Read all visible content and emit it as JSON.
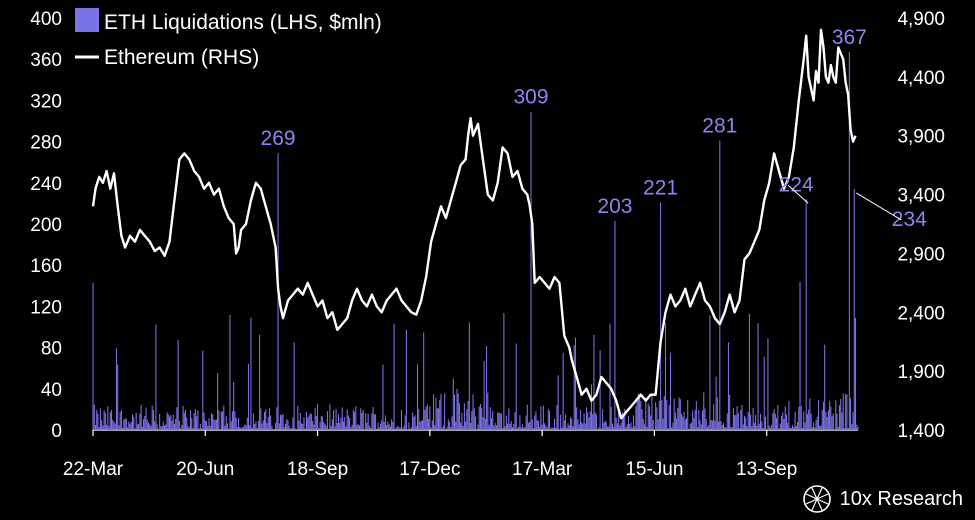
{
  "chart_data": {
    "type": "bar+line",
    "series": [
      {
        "name": "ETH Liquidations (LHS, $mln)",
        "kind": "bar",
        "axis": "left",
        "color": "#7b74e6"
      },
      {
        "name": "Ethereum (RHS)",
        "kind": "line",
        "axis": "right",
        "color": "#ffffff"
      }
    ],
    "x_ticks": [
      "22-Mar",
      "20-Jun",
      "18-Sep",
      "17-Dec",
      "17-Mar",
      "15-Jun",
      "13-Sep"
    ],
    "x_range_days": [
      0,
      620
    ],
    "y_left": {
      "ticks": [
        0,
        40,
        80,
        120,
        160,
        200,
        240,
        280,
        320,
        360,
        400
      ],
      "range": [
        0,
        400
      ]
    },
    "y_right": {
      "ticks": [
        1400,
        1900,
        2400,
        2900,
        3400,
        3900,
        4400,
        4900
      ],
      "labels": [
        "1,400",
        "1,900",
        "2,400",
        "2,900",
        "3,400",
        "3,900",
        "4,400",
        "4,900"
      ],
      "range": [
        1400,
        4900
      ]
    },
    "annotations": [
      {
        "label": "269",
        "day": 150,
        "value": 269
      },
      {
        "label": "309",
        "day": 355,
        "value": 309
      },
      {
        "label": "203",
        "day": 423,
        "value": 203
      },
      {
        "label": "221",
        "day": 460,
        "value": 221
      },
      {
        "label": "281",
        "day": 508,
        "value": 281
      },
      {
        "label": "224",
        "day": 578,
        "value": 224
      },
      {
        "label": "367",
        "day": 613,
        "value": 367
      },
      {
        "label": "234",
        "day": 617,
        "value": 234
      }
    ],
    "eth_price": [
      [
        0,
        3300
      ],
      [
        2,
        3450
      ],
      [
        5,
        3550
      ],
      [
        8,
        3500
      ],
      [
        11,
        3600
      ],
      [
        14,
        3450
      ],
      [
        17,
        3580
      ],
      [
        20,
        3300
      ],
      [
        23,
        3050
      ],
      [
        26,
        2950
      ],
      [
        30,
        3050
      ],
      [
        34,
        3000
      ],
      [
        38,
        3100
      ],
      [
        42,
        3050
      ],
      [
        46,
        3000
      ],
      [
        50,
        2920
      ],
      [
        54,
        2950
      ],
      [
        58,
        2880
      ],
      [
        62,
        3000
      ],
      [
        66,
        3350
      ],
      [
        70,
        3700
      ],
      [
        74,
        3750
      ],
      [
        78,
        3700
      ],
      [
        82,
        3600
      ],
      [
        86,
        3550
      ],
      [
        90,
        3450
      ],
      [
        94,
        3500
      ],
      [
        98,
        3400
      ],
      [
        102,
        3450
      ],
      [
        106,
        3300
      ],
      [
        110,
        3200
      ],
      [
        114,
        3150
      ],
      [
        116,
        2900
      ],
      [
        118,
        2950
      ],
      [
        120,
        3100
      ],
      [
        124,
        3150
      ],
      [
        128,
        3350
      ],
      [
        132,
        3500
      ],
      [
        136,
        3450
      ],
      [
        140,
        3300
      ],
      [
        144,
        3150
      ],
      [
        148,
        2950
      ],
      [
        150,
        2600
      ],
      [
        152,
        2450
      ],
      [
        154,
        2350
      ],
      [
        158,
        2500
      ],
      [
        162,
        2550
      ],
      [
        166,
        2600
      ],
      [
        170,
        2550
      ],
      [
        174,
        2650
      ],
      [
        178,
        2550
      ],
      [
        182,
        2450
      ],
      [
        186,
        2500
      ],
      [
        190,
        2350
      ],
      [
        194,
        2400
      ],
      [
        198,
        2250
      ],
      [
        202,
        2300
      ],
      [
        206,
        2350
      ],
      [
        210,
        2500
      ],
      [
        214,
        2600
      ],
      [
        218,
        2500
      ],
      [
        222,
        2450
      ],
      [
        226,
        2550
      ],
      [
        230,
        2450
      ],
      [
        234,
        2400
      ],
      [
        238,
        2500
      ],
      [
        242,
        2550
      ],
      [
        246,
        2600
      ],
      [
        250,
        2500
      ],
      [
        254,
        2450
      ],
      [
        258,
        2400
      ],
      [
        262,
        2380
      ],
      [
        266,
        2500
      ],
      [
        270,
        2700
      ],
      [
        274,
        3000
      ],
      [
        278,
        3150
      ],
      [
        282,
        3300
      ],
      [
        286,
        3200
      ],
      [
        290,
        3350
      ],
      [
        294,
        3500
      ],
      [
        298,
        3650
      ],
      [
        302,
        3700
      ],
      [
        304,
        3900
      ],
      [
        306,
        4050
      ],
      [
        308,
        3900
      ],
      [
        312,
        4000
      ],
      [
        316,
        3700
      ],
      [
        320,
        3400
      ],
      [
        324,
        3350
      ],
      [
        328,
        3500
      ],
      [
        332,
        3800
      ],
      [
        336,
        3750
      ],
      [
        340,
        3550
      ],
      [
        344,
        3600
      ],
      [
        348,
        3450
      ],
      [
        352,
        3400
      ],
      [
        354,
        3300
      ],
      [
        356,
        3150
      ],
      [
        358,
        2650
      ],
      [
        362,
        2700
      ],
      [
        366,
        2650
      ],
      [
        370,
        2600
      ],
      [
        374,
        2700
      ],
      [
        378,
        2650
      ],
      [
        382,
        2200
      ],
      [
        386,
        2100
      ],
      [
        388,
        2000
      ],
      [
        392,
        1850
      ],
      [
        396,
        1700
      ],
      [
        400,
        1750
      ],
      [
        404,
        1650
      ],
      [
        408,
        1700
      ],
      [
        412,
        1850
      ],
      [
        416,
        1800
      ],
      [
        420,
        1750
      ],
      [
        424,
        1650
      ],
      [
        428,
        1500
      ],
      [
        432,
        1550
      ],
      [
        436,
        1600
      ],
      [
        440,
        1650
      ],
      [
        444,
        1700
      ],
      [
        448,
        1650
      ],
      [
        452,
        1700
      ],
      [
        456,
        1700
      ],
      [
        460,
        2150
      ],
      [
        464,
        2400
      ],
      [
        468,
        2550
      ],
      [
        472,
        2450
      ],
      [
        476,
        2500
      ],
      [
        480,
        2600
      ],
      [
        484,
        2450
      ],
      [
        488,
        2550
      ],
      [
        492,
        2650
      ],
      [
        496,
        2500
      ],
      [
        500,
        2450
      ],
      [
        504,
        2350
      ],
      [
        508,
        2300
      ],
      [
        512,
        2400
      ],
      [
        516,
        2550
      ],
      [
        520,
        2400
      ],
      [
        524,
        2500
      ],
      [
        528,
        2850
      ],
      [
        532,
        2900
      ],
      [
        536,
        3000
      ],
      [
        540,
        3100
      ],
      [
        544,
        3350
      ],
      [
        548,
        3500
      ],
      [
        552,
        3750
      ],
      [
        556,
        3600
      ],
      [
        560,
        3450
      ],
      [
        564,
        3550
      ],
      [
        568,
        3800
      ],
      [
        572,
        4200
      ],
      [
        576,
        4550
      ],
      [
        578,
        4750
      ],
      [
        580,
        4400
      ],
      [
        582,
        4300
      ],
      [
        584,
        4200
      ],
      [
        586,
        4450
      ],
      [
        588,
        4350
      ],
      [
        590,
        4800
      ],
      [
        592,
        4650
      ],
      [
        594,
        4400
      ],
      [
        596,
        4350
      ],
      [
        598,
        4500
      ],
      [
        600,
        4400
      ],
      [
        602,
        4350
      ],
      [
        604,
        4650
      ],
      [
        606,
        4600
      ],
      [
        608,
        4550
      ],
      [
        610,
        4350
      ],
      [
        612,
        4250
      ],
      [
        614,
        3950
      ],
      [
        616,
        3850
      ],
      [
        618,
        3900
      ]
    ]
  },
  "brand": {
    "name": "10x Research"
  }
}
